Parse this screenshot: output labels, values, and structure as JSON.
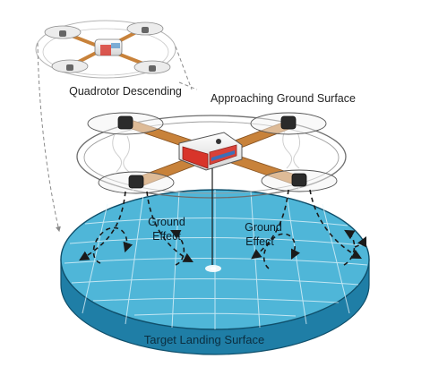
{
  "labels": {
    "top_state": "Quadrotor Descending",
    "mid_state": "Approaching Ground Surface",
    "left_effect_line1": "Ground",
    "left_effect_line2": "Effect",
    "right_effect_line1": "Ground",
    "right_effect_line2": "Effect",
    "surface": "Target Landing Surface"
  },
  "colors": {
    "surface_top": "#4fb6d8",
    "surface_side": "#1f7ea6",
    "surface_grid": "#e8f6fc",
    "arm": "#c8823a",
    "arm_dark": "#8a5421",
    "body_red": "#d8342a",
    "body_white": "#f2f2f2",
    "motor": "#2b2b2b",
    "ghost": "#9a9a9a",
    "flow_arrow": "#1a1a1a"
  },
  "icons": {
    "drone_ghost": "quadrotor-outline-icon",
    "drone_main": "quadrotor-icon",
    "landing_target": "landing-target-icon"
  }
}
